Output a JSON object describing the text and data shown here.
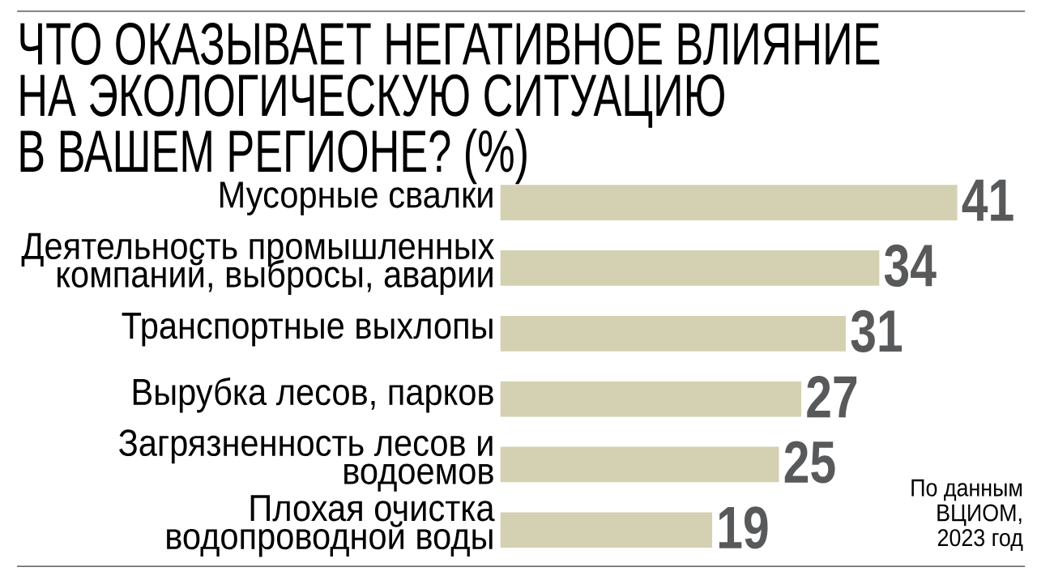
{
  "chart_data": {
    "type": "bar",
    "orientation": "horizontal",
    "title": "ЧТО ОКАЗЫВАЕТ НЕГАТИВНОЕ ВЛИЯНИЕ НА ЭКОЛОГИЧЕСКУЮ СИТУАЦИЮ В ВАШЕМ РЕГИОНЕ? (%)",
    "categories": [
      "Мусорные свалки",
      "Деятельность промышленных компаний, выбросы, аварии",
      "Транспортные выхлопы",
      "Вырубка лесов, парков",
      "Загрязненность лесов и водоемов",
      "Плохая очистка водопроводной воды"
    ],
    "values": [
      41,
      34,
      31,
      27,
      25,
      19
    ],
    "color": "#d4d1b3",
    "data_labels": true,
    "tick_labels": "y",
    "annotations": [
      "По данным ВЦИОМ, 2023 год"
    ]
  }
}
